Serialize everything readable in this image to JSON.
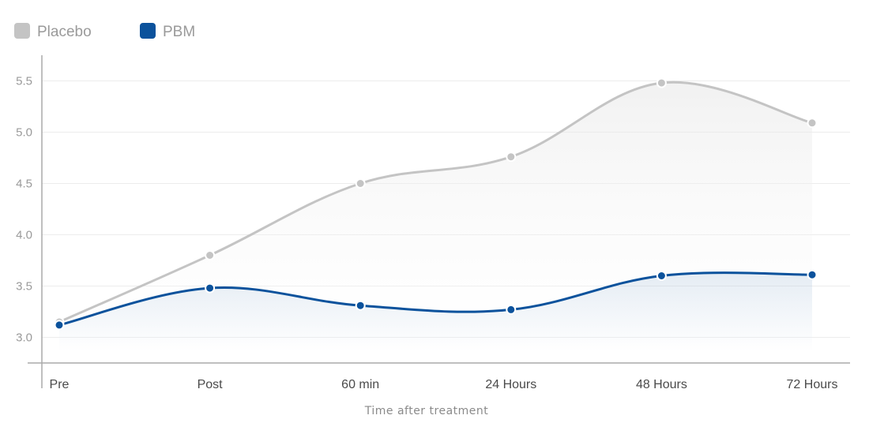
{
  "chart_data": {
    "type": "line",
    "smooth": true,
    "area_fill": true,
    "categories": [
      "Pre",
      "Post",
      "60 min",
      "24 Hours",
      "48 Hours",
      "72 Hours"
    ],
    "series": [
      {
        "name": "Placebo",
        "color": "#c4c4c4",
        "values": [
          3.15,
          3.8,
          4.5,
          4.76,
          5.48,
          5.09
        ]
      },
      {
        "name": "PBM",
        "color": "#0b529c",
        "values": [
          3.12,
          3.48,
          3.31,
          3.27,
          3.6,
          3.61
        ]
      }
    ],
    "xlabel": "Time after treatment",
    "ylabel": "",
    "ylim": [
      2.75,
      5.75
    ],
    "yticks": [
      "3.0",
      "3.5",
      "4.0",
      "4.5",
      "5.0",
      "5.5"
    ],
    "grid": true,
    "legend_position": "top-left"
  }
}
